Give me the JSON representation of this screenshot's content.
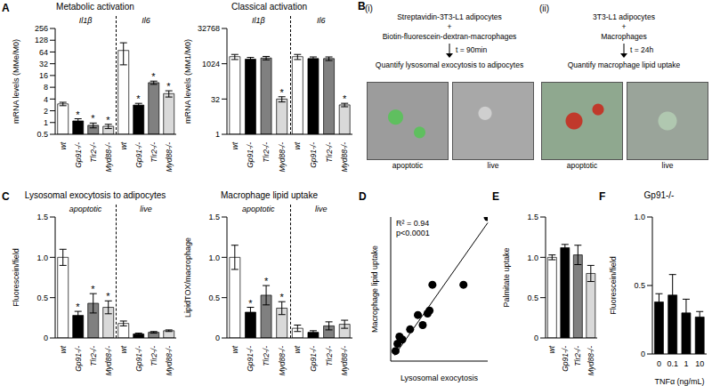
{
  "chart_data": [
    {
      "panel_label": "A",
      "type": "bar",
      "title": "Metabolic activation",
      "y_label": "mRNA levels (MMe/M0)",
      "log": "y",
      "categories": [
        "wt",
        "Gp91-/-",
        "Tlr2-/-",
        "Myd88-/-"
      ],
      "colors": [
        "#ffffff",
        "#000000",
        "#808080",
        "#d9d9d9"
      ],
      "groups": [
        {
          "name": "Il1β",
          "values": [
            3.0,
            1.1,
            0.85,
            0.8
          ],
          "errors": [
            0.3,
            0.15,
            0.12,
            0.1
          ],
          "marks": [
            null,
            "*",
            "*",
            "*"
          ]
        },
        {
          "name": "Il6",
          "values": [
            70,
            2.8,
            10.5,
            5.5
          ],
          "errors": [
            40,
            0.3,
            1,
            1
          ],
          "marks": [
            null,
            "*",
            "*",
            "*"
          ]
        }
      ],
      "ylim": [
        0.5,
        256
      ],
      "yticks": [
        0.5,
        1,
        2,
        4,
        8,
        16,
        32,
        64,
        128,
        256
      ]
    },
    {
      "type": "bar",
      "title": "Classical activation",
      "y_label": "mRNA levels (MM1/M0)",
      "log": "y",
      "categories": [
        "wt",
        "Gp91-/-",
        "Tlr2-/-",
        "Myd88-/-"
      ],
      "colors": [
        "#ffffff",
        "#000000",
        "#808080",
        "#d9d9d9"
      ],
      "groups": [
        {
          "name": "Il1β",
          "values": [
            2048,
            1600,
            1800,
            32
          ],
          "errors": [
            500,
            300,
            300,
            8
          ],
          "marks": [
            null,
            null,
            null,
            "*"
          ]
        },
        {
          "name": "Il6",
          "values": [
            2048,
            1700,
            1700,
            18
          ],
          "errors": [
            500,
            300,
            300,
            3
          ],
          "marks": [
            null,
            null,
            null,
            "*"
          ]
        }
      ],
      "ylim": [
        1,
        32768
      ],
      "yticks": [
        1,
        32,
        1024,
        32768
      ]
    },
    {
      "panel_label": "C",
      "type": "bar",
      "title": "Lysosomal exocytosis to adipocytes",
      "y_label": "Fluorescein/field",
      "categories": [
        "wt",
        "Gp91-/-",
        "Tlr2-/-",
        "Myd88-/-"
      ],
      "colors": [
        "#ffffff",
        "#000000",
        "#808080",
        "#d9d9d9"
      ],
      "groups": [
        {
          "name": "apoptotic",
          "values": [
            1.0,
            0.28,
            0.43,
            0.38
          ],
          "errors": [
            0.1,
            0.05,
            0.12,
            0.08
          ],
          "marks": [
            null,
            "*",
            "*",
            "*"
          ]
        },
        {
          "name": "live",
          "values": [
            0.18,
            0.05,
            0.07,
            0.09
          ],
          "errors": [
            0.03,
            0.01,
            0.01,
            0.01
          ]
        }
      ],
      "ylim": [
        0,
        1.5
      ],
      "yticks": [
        0,
        0.5,
        {
          "value": 1,
          "label": "1.0"
        },
        1.5
      ]
    },
    {
      "type": "bar",
      "title": "Macrophage lipid uptake",
      "y_label": "LipidTOX/macrophage",
      "categories": [
        "wt",
        "Gp91-/-",
        "Tlr2-/-",
        "Myd88-/-"
      ],
      "colors": [
        "#ffffff",
        "#000000",
        "#808080",
        "#d9d9d9"
      ],
      "groups": [
        {
          "name": "apoptotic",
          "values": [
            1.0,
            0.32,
            0.53,
            0.37
          ],
          "errors": [
            0.15,
            0.06,
            0.12,
            0.08
          ],
          "marks": [
            null,
            "*",
            "*",
            "*"
          ]
        },
        {
          "name": "live",
          "values": [
            0.12,
            0.07,
            0.15,
            0.17
          ],
          "errors": [
            0.04,
            0.02,
            0.05,
            0.05
          ]
        }
      ],
      "ylim": [
        0,
        1.5
      ],
      "yticks": [
        0,
        0.5,
        {
          "value": 1,
          "label": "1.0"
        },
        1.5
      ]
    },
    {
      "panel_label": "D",
      "type": "scatter",
      "x_label": "Lysosomal exocytosis",
      "y_label": "Macrophage lipid uptake",
      "x": [
        1.0,
        0.75,
        0.43,
        0.4,
        0.38,
        0.28,
        0.33,
        0.2,
        0.12,
        0.09,
        0.07,
        0.05
      ],
      "y": [
        1.0,
        0.53,
        0.53,
        0.35,
        0.33,
        0.32,
        0.25,
        0.22,
        0.15,
        0.17,
        0.12,
        0.07
      ],
      "color": "#000000",
      "fit": {
        "x": [
          0.04,
          1
        ],
        "y": [
          0.04,
          0.96
        ]
      },
      "annotations": [
        "R² = 0.94",
        "p<0.0001"
      ],
      "xlim": [
        0,
        1
      ],
      "ylim": [
        0,
        1
      ],
      "tick_labels": false
    },
    {
      "panel_label": "E",
      "type": "bar",
      "y_label": "Palmitate uptake",
      "categories": [
        "wt",
        "Gp91-/-",
        "Tlr2-/-",
        "Myd88-/-"
      ],
      "colors": [
        "#ffffff",
        "#000000",
        "#808080",
        "#d9d9d9"
      ],
      "values": [
        1.0,
        1.12,
        1.03,
        0.8
      ],
      "errors": [
        0.03,
        0.04,
        0.12,
        0.1
      ],
      "ylim": [
        0,
        1.5
      ],
      "yticks": [
        0,
        0.5,
        {
          "value": 1,
          "label": "1.0"
        },
        1.5
      ]
    },
    {
      "panel_label": "F",
      "type": "bar",
      "title": "Gp91-/-",
      "x_label": "TNFα (ng/mL)",
      "y_label": "Fluorescein/field",
      "categories": [
        "0",
        "0.1",
        "1",
        "10"
      ],
      "color": "#000000",
      "values": [
        0.38,
        0.43,
        0.3,
        0.27
      ],
      "errors": [
        0.06,
        0.15,
        0.1,
        0.04
      ],
      "ylim": [
        0,
        1
      ],
      "yticks": [
        0,
        0.5,
        {
          "value": 1,
          "label": "1.0"
        }
      ]
    }
  ],
  "schematic": {
    "panel_label": "B",
    "parts": [
      {
        "label": "(i)",
        "lines": [
          "Streptavidin-3T3-L1 adipocytes",
          "+",
          "Biotin-fluorescein-dextran-macrophages"
        ],
        "time": "t = 90min",
        "result": "Quantify lysosomal exocytosis to adipocytes",
        "images": [
          "apoptotic",
          "live"
        ]
      },
      {
        "label": "(ii)",
        "lines": [
          "3T3-L1 adipocytes",
          "+",
          "Macrophages"
        ],
        "time": "t = 24h",
        "result": "Quantify macrophage lipid uptake",
        "images": [
          "apoptotic",
          "live"
        ]
      }
    ]
  }
}
